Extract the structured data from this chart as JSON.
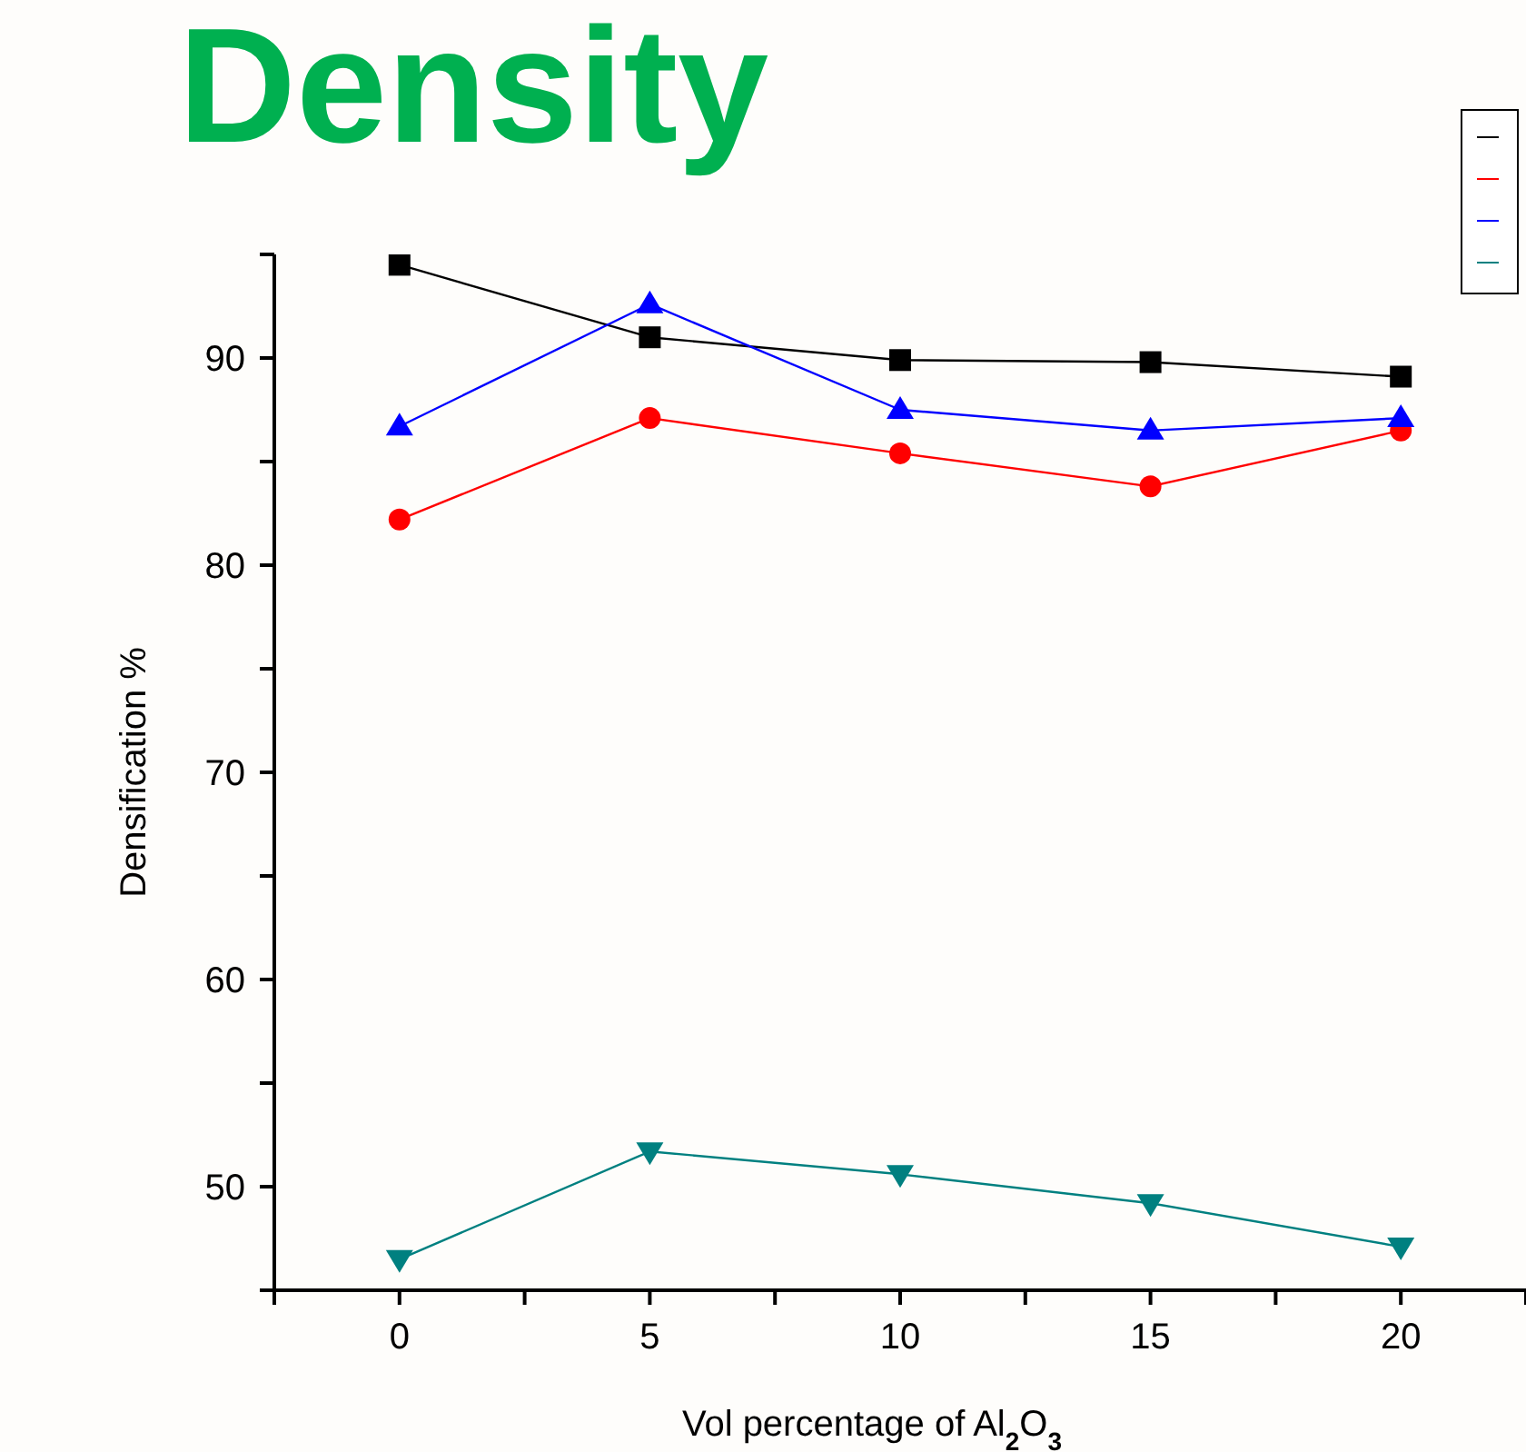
{
  "chart_data": {
    "type": "line",
    "title": "Density",
    "xlabel": "Vol percentage of Al$_{2}$O$_{3}$",
    "ylabel": "Densification %",
    "x": [
      0,
      5,
      10,
      15,
      20
    ],
    "series": [
      {
        "color": "#000000",
        "marker": "square",
        "values": [
          94.5,
          91.0,
          89.9,
          89.8,
          89.1
        ]
      },
      {
        "color": "#ff0000",
        "marker": "circle",
        "values": [
          82.2,
          87.1,
          85.4,
          83.8,
          86.5
        ]
      },
      {
        "color": "#0000ff",
        "marker": "triangle",
        "values": [
          86.7,
          92.6,
          87.5,
          86.5,
          87.1
        ]
      },
      {
        "color": "#008080",
        "marker": "triangle-down",
        "values": [
          46.5,
          51.7,
          50.6,
          49.2,
          47.1
        ]
      }
    ],
    "xlim": [
      -2.5,
      22.5
    ],
    "xticks": [
      {
        "value": -2.5,
        "label": null
      },
      0,
      {
        "value": 2.5,
        "label": null
      },
      5,
      {
        "value": 7.5,
        "label": null
      },
      10,
      {
        "value": 12.5,
        "label": null
      },
      15,
      {
        "value": 17.5,
        "label": null
      },
      20,
      {
        "value": 22.5,
        "label": null
      }
    ],
    "ylim": [
      45,
      95
    ],
    "yticks": [
      {
        "value": 45,
        "label": null
      },
      50,
      {
        "value": 55,
        "label": null
      },
      60,
      {
        "value": 65,
        "label": null
      },
      70,
      {
        "value": 75,
        "label": null
      },
      80,
      {
        "value": 85,
        "label": null
      },
      90,
      {
        "value": 95,
        "label": null
      }
    ],
    "grid": false
  }
}
